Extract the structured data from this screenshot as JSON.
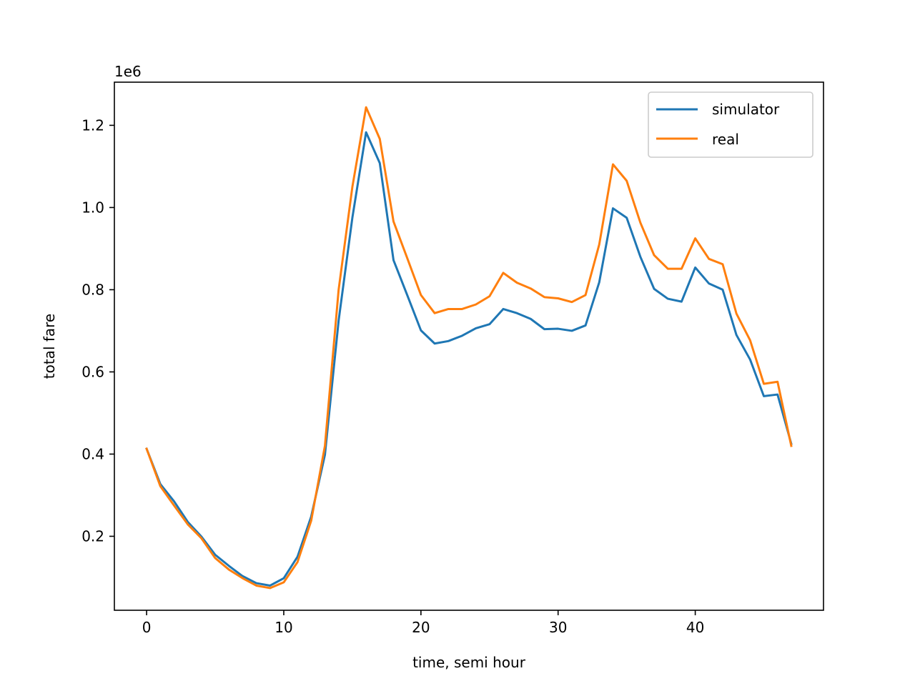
{
  "chart_data": {
    "type": "line",
    "title": "",
    "xlabel": "time, semi hour",
    "ylabel": "total fare",
    "offset_label": "1e6",
    "xlim": [
      -2.35,
      49.35
    ],
    "ylim": [
      20000,
      1305000
    ],
    "x_ticks": [
      0,
      10,
      20,
      30,
      40
    ],
    "x_tick_labels": [
      "0",
      "10",
      "20",
      "30",
      "40"
    ],
    "y_ticks": [
      200000,
      400000,
      600000,
      800000,
      1000000,
      1200000
    ],
    "y_tick_labels": [
      "0.2",
      "0.4",
      "0.6",
      "0.8",
      "1.0",
      "1.2"
    ],
    "grid": false,
    "legend_position": "top-right",
    "x": [
      0,
      1,
      2,
      3,
      4,
      5,
      6,
      7,
      8,
      9,
      10,
      11,
      12,
      13,
      14,
      15,
      16,
      17,
      18,
      19,
      20,
      21,
      22,
      23,
      24,
      25,
      26,
      27,
      28,
      29,
      30,
      31,
      32,
      33,
      34,
      35,
      36,
      37,
      38,
      39,
      40,
      41,
      42,
      43,
      44,
      45,
      46,
      47
    ],
    "series": [
      {
        "name": "simulator",
        "color": "#1f77b4",
        "values": [
          413000,
          327000,
          285000,
          235000,
          199000,
          155000,
          128000,
          103000,
          86000,
          80000,
          98000,
          150000,
          248000,
          398000,
          725000,
          975000,
          1183000,
          1108000,
          872000,
          787000,
          701000,
          669000,
          675000,
          688000,
          706000,
          716000,
          753000,
          743000,
          729000,
          704000,
          705000,
          700000,
          713000,
          818000,
          998000,
          975000,
          880000,
          802000,
          778000,
          771000,
          854000,
          815000,
          800000,
          690000,
          630000,
          541000,
          545000,
          425000
        ]
      },
      {
        "name": "real",
        "color": "#ff7f0e",
        "values": [
          413000,
          322000,
          275000,
          229000,
          195000,
          147000,
          119000,
          98000,
          80000,
          74000,
          88000,
          137000,
          238000,
          420000,
          800000,
          1050000,
          1244000,
          1167000,
          966000,
          877000,
          787000,
          743000,
          753000,
          753000,
          764000,
          784000,
          841000,
          817000,
          803000,
          782000,
          779000,
          770000,
          787000,
          910000,
          1105000,
          1065000,
          963000,
          884000,
          851000,
          851000,
          925000,
          875000,
          862000,
          742000,
          677000,
          571000,
          576000,
          420000
        ]
      }
    ]
  }
}
